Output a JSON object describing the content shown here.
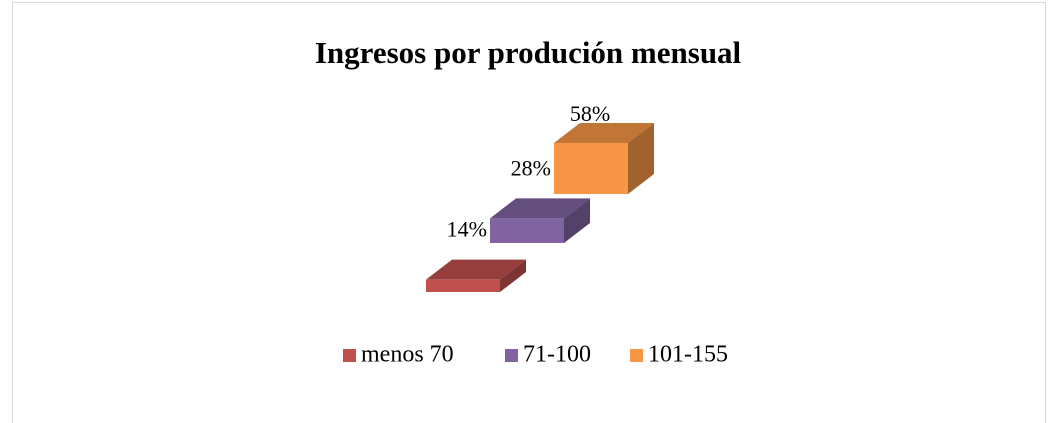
{
  "chart_data": {
    "type": "bar3d",
    "title": "Ingresos por produción mensual",
    "series": [
      {
        "name": "menos 70",
        "color": "#c0504d",
        "values": [
          14
        ],
        "value_labels": [
          "14%"
        ]
      },
      {
        "name": "71-100",
        "color": "#8064a2",
        "values": [
          28
        ],
        "value_labels": [
          "28%"
        ]
      },
      {
        "name": "101-155",
        "color": "#f79646",
        "values": [
          58
        ],
        "value_labels": [
          "58%"
        ]
      }
    ]
  }
}
